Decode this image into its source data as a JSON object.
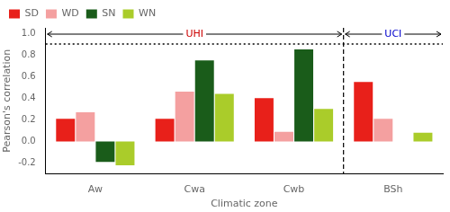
{
  "chart_data": {
    "type": "bar",
    "categories": [
      "Aw",
      "Cwa",
      "Cwb",
      "BSh"
    ],
    "series": [
      {
        "name": "SD",
        "color": "#e8201a",
        "values": [
          0.21,
          0.21,
          0.4,
          0.55
        ]
      },
      {
        "name": "WD",
        "color": "#f4a0a0",
        "values": [
          0.27,
          0.46,
          0.09,
          0.21
        ]
      },
      {
        "name": "SN",
        "color": "#1a5c1a",
        "values": [
          -0.19,
          0.75,
          0.85,
          0.0
        ]
      },
      {
        "name": "WN",
        "color": "#aacc2a",
        "values": [
          -0.22,
          0.44,
          0.3,
          0.08
        ]
      }
    ],
    "xlabel": "Climatic zone",
    "ylabel": "Pearson's correlation",
    "ylim": [
      -0.3,
      1.05
    ],
    "yticks": [
      -0.2,
      {
        "value": 0,
        "label": "0.0"
      },
      0.2,
      0.4,
      0.6,
      0.8,
      {
        "value": 1,
        "label": "1.0"
      }
    ],
    "grid": false,
    "legend": "upper left",
    "reference_line": 0.9,
    "annotations": [
      {
        "text": "UHI",
        "color": "#cc0000",
        "from": "Aw",
        "to": "Cwb"
      },
      {
        "text": "UCI",
        "color": "#0000cc",
        "from": "BSh",
        "to": "BSh"
      }
    ]
  }
}
